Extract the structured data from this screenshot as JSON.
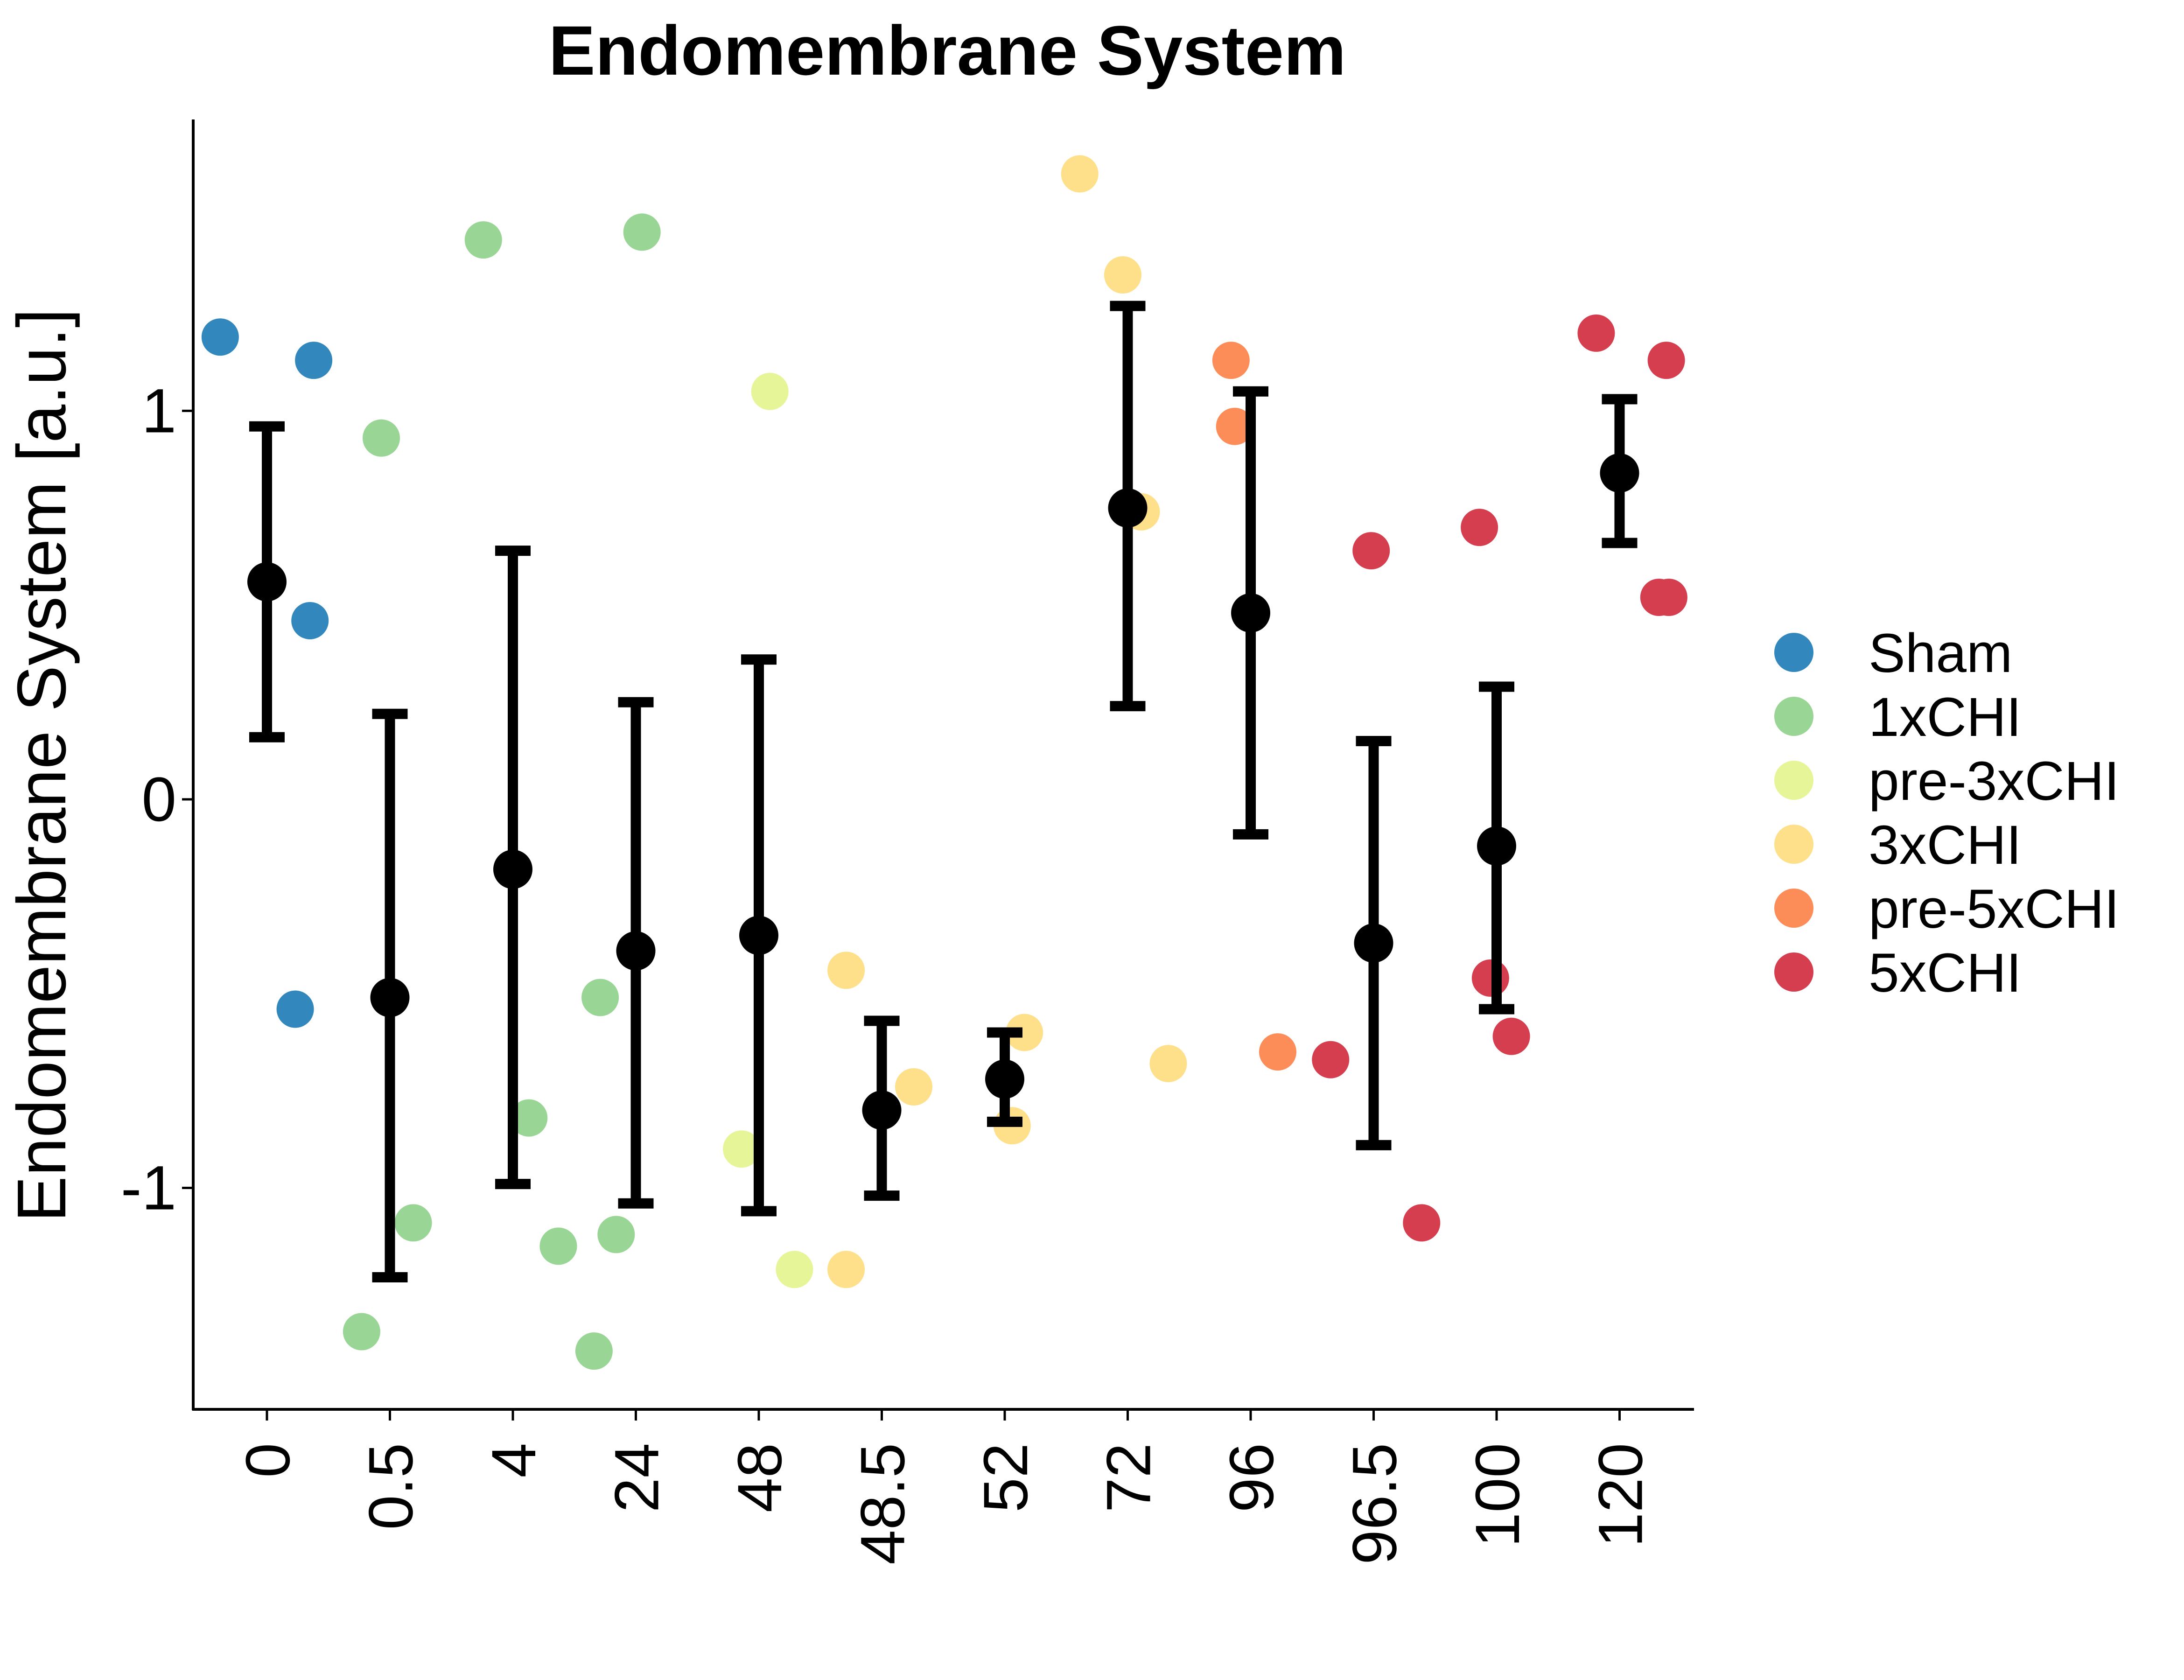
{
  "chart_data": {
    "type": "scatter",
    "title": "Endomembrane System",
    "xlabel": "",
    "ylabel": "Endomembrane System [a.u.]",
    "categories": [
      "0",
      "0.5",
      "4",
      "24",
      "48",
      "48.5",
      "52",
      "72",
      "96",
      "96.5",
      "100",
      "120"
    ],
    "ylim": [
      -1.57,
      1.75
    ],
    "yticks": [
      -1,
      0,
      1
    ],
    "grid": false,
    "legend_position": "right",
    "series": [
      {
        "name": "Sham",
        "color": "#3288bd",
        "points": [
          {
            "x": "0",
            "y": 1.19,
            "jitter": -0.38
          },
          {
            "x": "0",
            "y": 1.13,
            "jitter": 0.38
          },
          {
            "x": "0",
            "y": 0.46,
            "jitter": 0.35
          },
          {
            "x": "0",
            "y": -0.54,
            "jitter": 0.23
          }
        ]
      },
      {
        "name": "1xCHI",
        "color": "#99d594",
        "points": [
          {
            "x": "0.5",
            "y": 0.93,
            "jitter": -0.07
          },
          {
            "x": "0.5",
            "y": -1.09,
            "jitter": 0.19
          },
          {
            "x": "0.5",
            "y": -1.37,
            "jitter": -0.23
          },
          {
            "x": "4",
            "y": 1.44,
            "jitter": -0.24
          },
          {
            "x": "4",
            "y": -0.82,
            "jitter": 0.13
          },
          {
            "x": "4",
            "y": -1.15,
            "jitter": 0.37
          },
          {
            "x": "24",
            "y": 1.46,
            "jitter": 0.05
          },
          {
            "x": "24",
            "y": -0.51,
            "jitter": -0.29
          },
          {
            "x": "24",
            "y": -1.12,
            "jitter": -0.16
          },
          {
            "x": "24",
            "y": -1.42,
            "jitter": -0.34
          }
        ]
      },
      {
        "name": "pre-3xCHI",
        "color": "#e6f598",
        "points": [
          {
            "x": "48",
            "y": 1.05,
            "jitter": 0.09
          },
          {
            "x": "48",
            "y": -0.9,
            "jitter": -0.14
          },
          {
            "x": "48",
            "y": -1.21,
            "jitter": 0.29
          }
        ]
      },
      {
        "name": "3xCHI",
        "color": "#fee08b",
        "points": [
          {
            "x": "48.5",
            "y": -0.44,
            "jitter": -0.29
          },
          {
            "x": "48.5",
            "y": -1.21,
            "jitter": -0.29
          },
          {
            "x": "48.5",
            "y": -0.74,
            "jitter": 0.26
          },
          {
            "x": "52",
            "y": -0.6,
            "jitter": 0.16
          },
          {
            "x": "52",
            "y": -0.84,
            "jitter": 0.06
          },
          {
            "x": "72",
            "y": 1.61,
            "jitter": -0.39
          },
          {
            "x": "72",
            "y": 1.35,
            "jitter": -0.04
          },
          {
            "x": "72",
            "y": 0.74,
            "jitter": 0.11
          },
          {
            "x": "72",
            "y": -0.68,
            "jitter": 0.33
          }
        ]
      },
      {
        "name": "pre-5xCHI",
        "color": "#fc8d59",
        "points": [
          {
            "x": "96",
            "y": 1.13,
            "jitter": -0.16
          },
          {
            "x": "96",
            "y": 0.96,
            "jitter": -0.13
          },
          {
            "x": "96",
            "y": -0.65,
            "jitter": 0.22
          }
        ]
      },
      {
        "name": "5xCHI",
        "color": "#d53e4f",
        "points": [
          {
            "x": "96.5",
            "y": 0.64,
            "jitter": -0.02
          },
          {
            "x": "96.5",
            "y": -0.67,
            "jitter": -0.35
          },
          {
            "x": "96.5",
            "y": -1.09,
            "jitter": 0.39
          },
          {
            "x": "100",
            "y": 0.7,
            "jitter": -0.14
          },
          {
            "x": "100",
            "y": -0.46,
            "jitter": -0.05
          },
          {
            "x": "100",
            "y": -0.61,
            "jitter": 0.12
          },
          {
            "x": "120",
            "y": 1.2,
            "jitter": -0.19
          },
          {
            "x": "120",
            "y": 1.13,
            "jitter": 0.38
          },
          {
            "x": "120",
            "y": 0.52,
            "jitter": 0.32
          },
          {
            "x": "120",
            "y": 0.52,
            "jitter": 0.4
          }
        ]
      }
    ],
    "summary": {
      "color": "#000000",
      "values": [
        {
          "x": "0",
          "mean": 0.56,
          "lower": 0.16,
          "upper": 0.96
        },
        {
          "x": "0.5",
          "mean": -0.51,
          "lower": -1.23,
          "upper": 0.22
        },
        {
          "x": "4",
          "mean": -0.18,
          "lower": -0.99,
          "upper": 0.64
        },
        {
          "x": "24",
          "mean": -0.39,
          "lower": -1.04,
          "upper": 0.25
        },
        {
          "x": "48",
          "mean": -0.35,
          "lower": -1.06,
          "upper": 0.36
        },
        {
          "x": "48.5",
          "mean": -0.8,
          "lower": -1.02,
          "upper": -0.57
        },
        {
          "x": "52",
          "mean": -0.72,
          "lower": -0.83,
          "upper": -0.6
        },
        {
          "x": "72",
          "mean": 0.75,
          "lower": 0.24,
          "upper": 1.27
        },
        {
          "x": "96",
          "mean": 0.48,
          "lower": -0.09,
          "upper": 1.05
        },
        {
          "x": "96.5",
          "mean": -0.37,
          "lower": -0.89,
          "upper": 0.15
        },
        {
          "x": "100",
          "mean": -0.12,
          "lower": -0.54,
          "upper": 0.29
        },
        {
          "x": "120",
          "mean": 0.84,
          "lower": 0.66,
          "upper": 1.03
        }
      ]
    }
  }
}
